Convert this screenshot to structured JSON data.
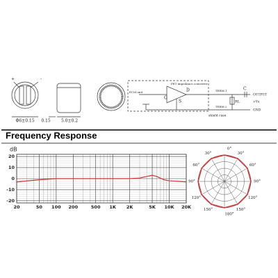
{
  "drawings": {
    "plus": "+",
    "minus": "-",
    "diameter": "Φ6±0.15",
    "thickness": "0.15",
    "height": "5.0±0.2"
  },
  "circuit": {
    "ecm": "ECM unit",
    "fet": "FET impedance converter",
    "gate": "G",
    "drain": "D",
    "source": "S",
    "term1": "TERM.1",
    "term2": "TERM.2",
    "cap": "C",
    "load": "RL",
    "output": "OUTPUT",
    "supply": "+Vs",
    "gnd": "GND",
    "shield": "shield case"
  },
  "section_title": "Frequency Response",
  "chart_data": [
    {
      "type": "line",
      "ylabel": "dB",
      "log_x": true,
      "grid": true,
      "x": [
        20,
        50,
        100,
        200,
        500,
        1000,
        2000,
        3000,
        4000,
        5000,
        6000,
        8000,
        10000,
        15000,
        20000
      ],
      "series": [
        {
          "color": "#d03030",
          "values": [
            -3,
            -1,
            0,
            0,
            0,
            0,
            0,
            0.5,
            2,
            3,
            2,
            -1,
            -2,
            -2.5,
            -3
          ]
        }
      ],
      "xlim": [
        20,
        20000
      ],
      "xticks": [
        20,
        50,
        100,
        200,
        500,
        {
          "value": 1000,
          "label": "1K"
        },
        {
          "value": 2000,
          "label": "2K"
        },
        {
          "value": 5000,
          "label": "5K"
        },
        {
          "value": 10000,
          "label": "10K"
        },
        {
          "value": 20000,
          "label": "20K"
        }
      ],
      "ylim": [
        -22,
        22
      ],
      "yticks": [
        20,
        10,
        0,
        -10,
        -20
      ]
    },
    {
      "type": "polar",
      "color": "#d03030",
      "angle_labels": [
        "0°",
        "30°",
        "60°",
        "90°",
        "120°",
        "150°",
        "180°"
      ],
      "angles": [
        0,
        30,
        60,
        90,
        120,
        150,
        180,
        210,
        240,
        270,
        300,
        330
      ],
      "values": [
        0,
        0,
        0,
        0,
        0,
        0,
        0,
        0,
        0,
        0,
        0,
        0
      ],
      "rlim": [
        -20,
        0
      ]
    }
  ]
}
